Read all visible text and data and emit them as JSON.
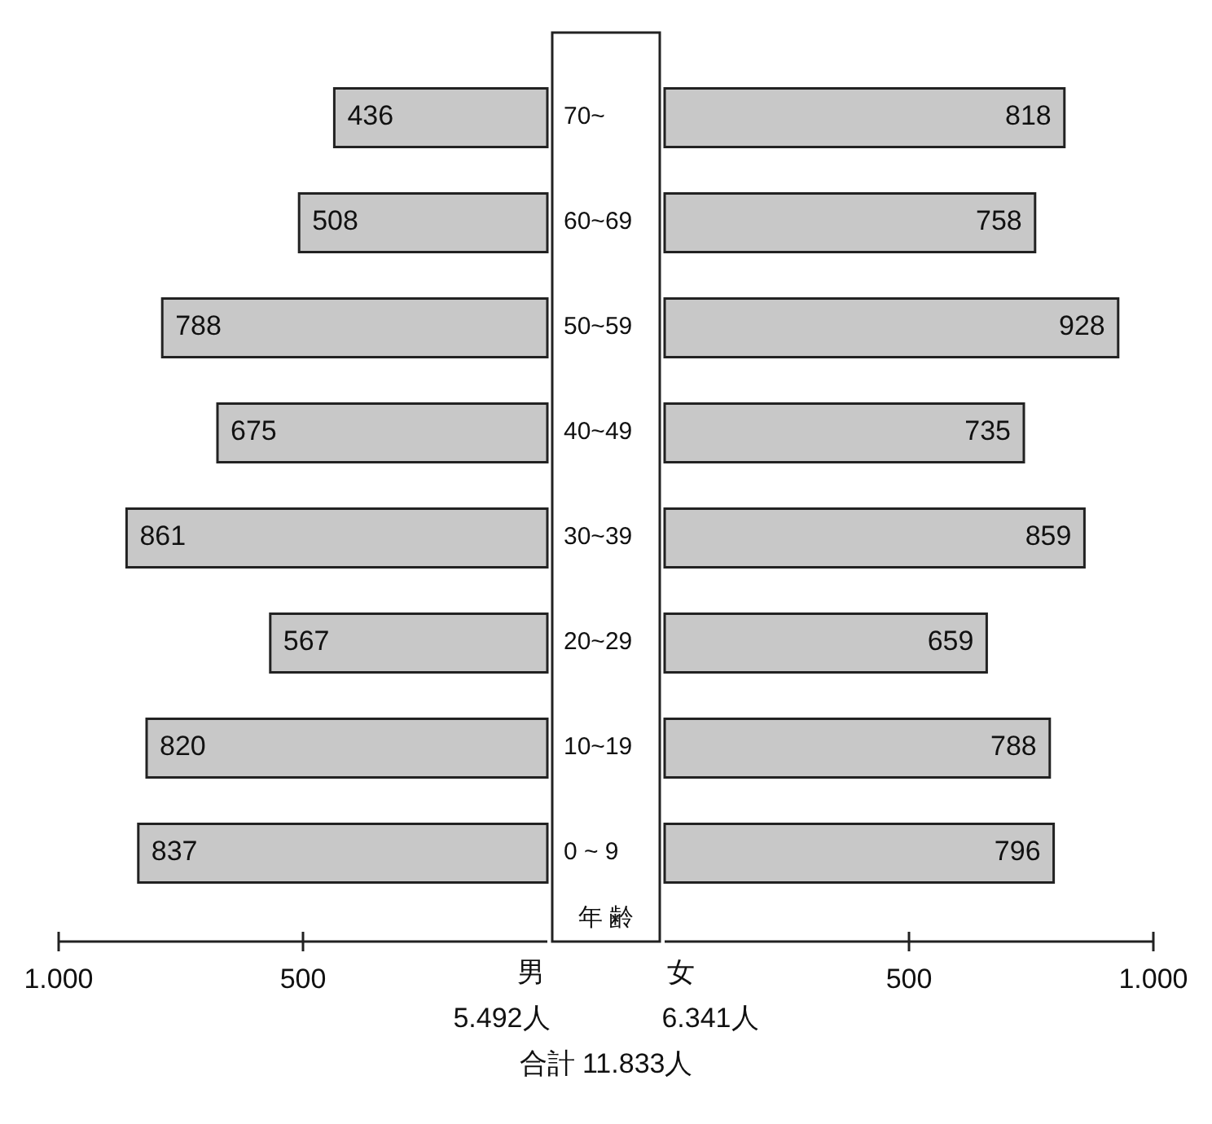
{
  "chart_data": [
    {
      "type": "bar",
      "orientation": "horizontal",
      "categories": [
        "70~",
        "60~69",
        "50~59",
        "40~49",
        "30~39",
        "20~29",
        "10~19",
        "0 ~ 9"
      ],
      "ylabel": "年 齢",
      "xlim": [
        1000,
        0
      ],
      "xticks": [
        {
          "value": 1000,
          "label": "1.000"
        },
        500
      ],
      "data_labels": true,
      "series": [
        {
          "name": "男",
          "color": "#c8c8c8",
          "values": [
            436,
            508,
            788,
            675,
            861,
            567,
            820,
            837
          ]
        }
      ],
      "annotations": [
        "5.492人",
        "合計 11.833人"
      ]
    },
    {
      "type": "bar",
      "orientation": "horizontal",
      "categories": [
        null,
        null,
        null,
        null,
        null,
        null,
        null,
        null
      ],
      "tick_labels": "x",
      "xlim": [
        0,
        1000
      ],
      "xticks": [
        500,
        {
          "value": 1000,
          "label": "1.000"
        }
      ],
      "data_labels": true,
      "series": [
        {
          "name": "女",
          "color": "#c8c8c8",
          "values": [
            818,
            758,
            928,
            735,
            859,
            659,
            788,
            796
          ]
        }
      ],
      "annotations": [
        "6.341人"
      ]
    }
  ]
}
